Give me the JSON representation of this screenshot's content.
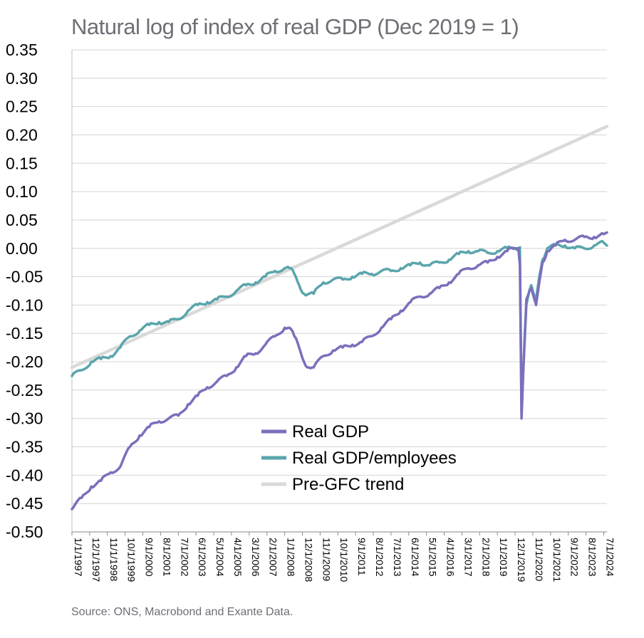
{
  "chart_data": {
    "type": "line",
    "title": "Natural log of index of real GDP (Dec 2019 = 1)",
    "source": "Source: ONS, Macrobond and Exante Data.",
    "ylim": [
      -0.5,
      0.35
    ],
    "yticks": [
      "0.35",
      "0.30",
      "0.25",
      "0.20",
      "0.15",
      "0.10",
      "0.05",
      "0.00",
      "-0.05",
      "-0.10",
      "-0.15",
      "-0.20",
      "-0.25",
      "-0.30",
      "-0.35",
      "-0.40",
      "-0.45",
      "-0.50"
    ],
    "xlim": [
      "1997-01",
      "2024-09"
    ],
    "xticks": [
      "1/1/1997",
      "12/1/1997",
      "11/1/1998",
      "10/1/1999",
      "9/1/2000",
      "8/1/2001",
      "7/1/2002",
      "6/1/2003",
      "5/1/2004",
      "4/1/2005",
      "3/1/2006",
      "2/1/2007",
      "1/1/2008",
      "12/1/2008",
      "11/1/2009",
      "10/1/2010",
      "9/1/2011",
      "8/1/2012",
      "7/1/2013",
      "6/1/2014",
      "5/1/2015",
      "4/1/2016",
      "3/1/2017",
      "2/1/2018",
      "1/1/2019",
      "12/1/2019",
      "11/1/2020",
      "10/1/2021",
      "9/1/2022",
      "8/1/2023",
      "7/1/2024"
    ],
    "grid": "horizontal",
    "legend_position": "center-bottom",
    "series": [
      {
        "name": "Real GDP",
        "color": "#7b6fbc",
        "points": [
          [
            "1997-01",
            -0.46
          ],
          [
            "1997-07",
            -0.44
          ],
          [
            "1998-01",
            -0.42
          ],
          [
            "1998-07",
            -0.41
          ],
          [
            "1999-01",
            -0.395
          ],
          [
            "1999-07",
            -0.385
          ],
          [
            "2000-01",
            -0.35
          ],
          [
            "2000-07",
            -0.33
          ],
          [
            "2001-01",
            -0.315
          ],
          [
            "2001-07",
            -0.305
          ],
          [
            "2002-01",
            -0.3
          ],
          [
            "2002-07",
            -0.295
          ],
          [
            "2003-01",
            -0.275
          ],
          [
            "2003-07",
            -0.26
          ],
          [
            "2004-01",
            -0.245
          ],
          [
            "2004-07",
            -0.235
          ],
          [
            "2005-01",
            -0.225
          ],
          [
            "2005-07",
            -0.21
          ],
          [
            "2006-01",
            -0.19
          ],
          [
            "2006-07",
            -0.185
          ],
          [
            "2007-01",
            -0.17
          ],
          [
            "2007-07",
            -0.155
          ],
          [
            "2008-01",
            -0.14
          ],
          [
            "2008-04",
            -0.14
          ],
          [
            "2008-07",
            -0.155
          ],
          [
            "2008-10",
            -0.175
          ],
          [
            "2009-01",
            -0.2
          ],
          [
            "2009-04",
            -0.21
          ],
          [
            "2009-07",
            -0.21
          ],
          [
            "2010-01",
            -0.19
          ],
          [
            "2010-07",
            -0.18
          ],
          [
            "2011-01",
            -0.175
          ],
          [
            "2011-07",
            -0.17
          ],
          [
            "2012-01",
            -0.165
          ],
          [
            "2012-07",
            -0.155
          ],
          [
            "2013-01",
            -0.14
          ],
          [
            "2013-07",
            -0.125
          ],
          [
            "2014-01",
            -0.11
          ],
          [
            "2014-07",
            -0.095
          ],
          [
            "2015-01",
            -0.085
          ],
          [
            "2015-07",
            -0.08
          ],
          [
            "2016-01",
            -0.07
          ],
          [
            "2016-07",
            -0.06
          ],
          [
            "2017-01",
            -0.045
          ],
          [
            "2017-07",
            -0.035
          ],
          [
            "2018-01",
            -0.03
          ],
          [
            "2018-07",
            -0.025
          ],
          [
            "2019-01",
            -0.015
          ],
          [
            "2019-07",
            -0.005
          ],
          [
            "2019-12",
            0.0
          ],
          [
            "2020-02",
            0.0
          ],
          [
            "2020-03",
            -0.03
          ],
          [
            "2020-04",
            -0.3
          ],
          [
            "2020-05",
            -0.22
          ],
          [
            "2020-07",
            -0.09
          ],
          [
            "2020-10",
            -0.07
          ],
          [
            "2020-12",
            -0.09
          ],
          [
            "2021-01",
            -0.1
          ],
          [
            "2021-03",
            -0.06
          ],
          [
            "2021-05",
            -0.025
          ],
          [
            "2021-08",
            -0.005
          ],
          [
            "2022-01",
            0.005
          ],
          [
            "2022-07",
            0.015
          ],
          [
            "2023-01",
            0.015
          ],
          [
            "2023-07",
            0.02
          ],
          [
            "2024-01",
            0.02
          ],
          [
            "2024-07",
            0.025
          ],
          [
            "2024-09",
            0.028
          ]
        ]
      },
      {
        "name": "Real GDP/employees",
        "color": "#5aa5ac",
        "points": [
          [
            "1997-01",
            -0.225
          ],
          [
            "1997-07",
            -0.215
          ],
          [
            "1998-01",
            -0.2
          ],
          [
            "1998-07",
            -0.195
          ],
          [
            "1999-01",
            -0.19
          ],
          [
            "1999-07",
            -0.175
          ],
          [
            "2000-01",
            -0.155
          ],
          [
            "2000-07",
            -0.145
          ],
          [
            "2001-01",
            -0.135
          ],
          [
            "2001-07",
            -0.13
          ],
          [
            "2002-01",
            -0.13
          ],
          [
            "2002-07",
            -0.125
          ],
          [
            "2003-01",
            -0.11
          ],
          [
            "2003-07",
            -0.1
          ],
          [
            "2004-01",
            -0.095
          ],
          [
            "2004-07",
            -0.09
          ],
          [
            "2005-01",
            -0.085
          ],
          [
            "2005-07",
            -0.075
          ],
          [
            "2006-01",
            -0.065
          ],
          [
            "2006-07",
            -0.06
          ],
          [
            "2007-01",
            -0.05
          ],
          [
            "2007-07",
            -0.04
          ],
          [
            "2008-01",
            -0.035
          ],
          [
            "2008-04",
            -0.035
          ],
          [
            "2008-07",
            -0.045
          ],
          [
            "2008-10",
            -0.065
          ],
          [
            "2009-01",
            -0.08
          ],
          [
            "2009-07",
            -0.08
          ],
          [
            "2010-01",
            -0.06
          ],
          [
            "2010-07",
            -0.055
          ],
          [
            "2011-01",
            -0.055
          ],
          [
            "2011-07",
            -0.05
          ],
          [
            "2012-01",
            -0.045
          ],
          [
            "2012-07",
            -0.045
          ],
          [
            "2013-01",
            -0.04
          ],
          [
            "2013-07",
            -0.04
          ],
          [
            "2014-01",
            -0.035
          ],
          [
            "2014-07",
            -0.03
          ],
          [
            "2015-01",
            -0.025
          ],
          [
            "2015-07",
            -0.03
          ],
          [
            "2016-01",
            -0.025
          ],
          [
            "2016-07",
            -0.02
          ],
          [
            "2017-01",
            -0.01
          ],
          [
            "2017-07",
            -0.005
          ],
          [
            "2018-01",
            -0.005
          ],
          [
            "2018-07",
            -0.008
          ],
          [
            "2019-01",
            -0.005
          ],
          [
            "2019-07",
            0.0
          ],
          [
            "2019-12",
            0.0
          ],
          [
            "2020-03",
            0.002
          ],
          [
            "2020-04",
            -0.29
          ],
          [
            "2020-05",
            -0.22
          ],
          [
            "2020-07",
            -0.1
          ],
          [
            "2020-10",
            -0.065
          ],
          [
            "2020-12",
            -0.085
          ],
          [
            "2021-01",
            -0.09
          ],
          [
            "2021-03",
            -0.05
          ],
          [
            "2021-05",
            -0.02
          ],
          [
            "2021-08",
            0.0
          ],
          [
            "2022-01",
            0.005
          ],
          [
            "2022-07",
            0.005
          ],
          [
            "2023-01",
            0.0
          ],
          [
            "2023-07",
            0.0
          ],
          [
            "2024-01",
            0.005
          ],
          [
            "2024-07",
            0.01
          ],
          [
            "2024-09",
            0.005
          ]
        ]
      },
      {
        "name": "Pre-GFC trend",
        "color": "#d9d9d9",
        "points": [
          [
            "1997-01",
            -0.21
          ],
          [
            "2024-09",
            0.215
          ]
        ]
      }
    ]
  }
}
